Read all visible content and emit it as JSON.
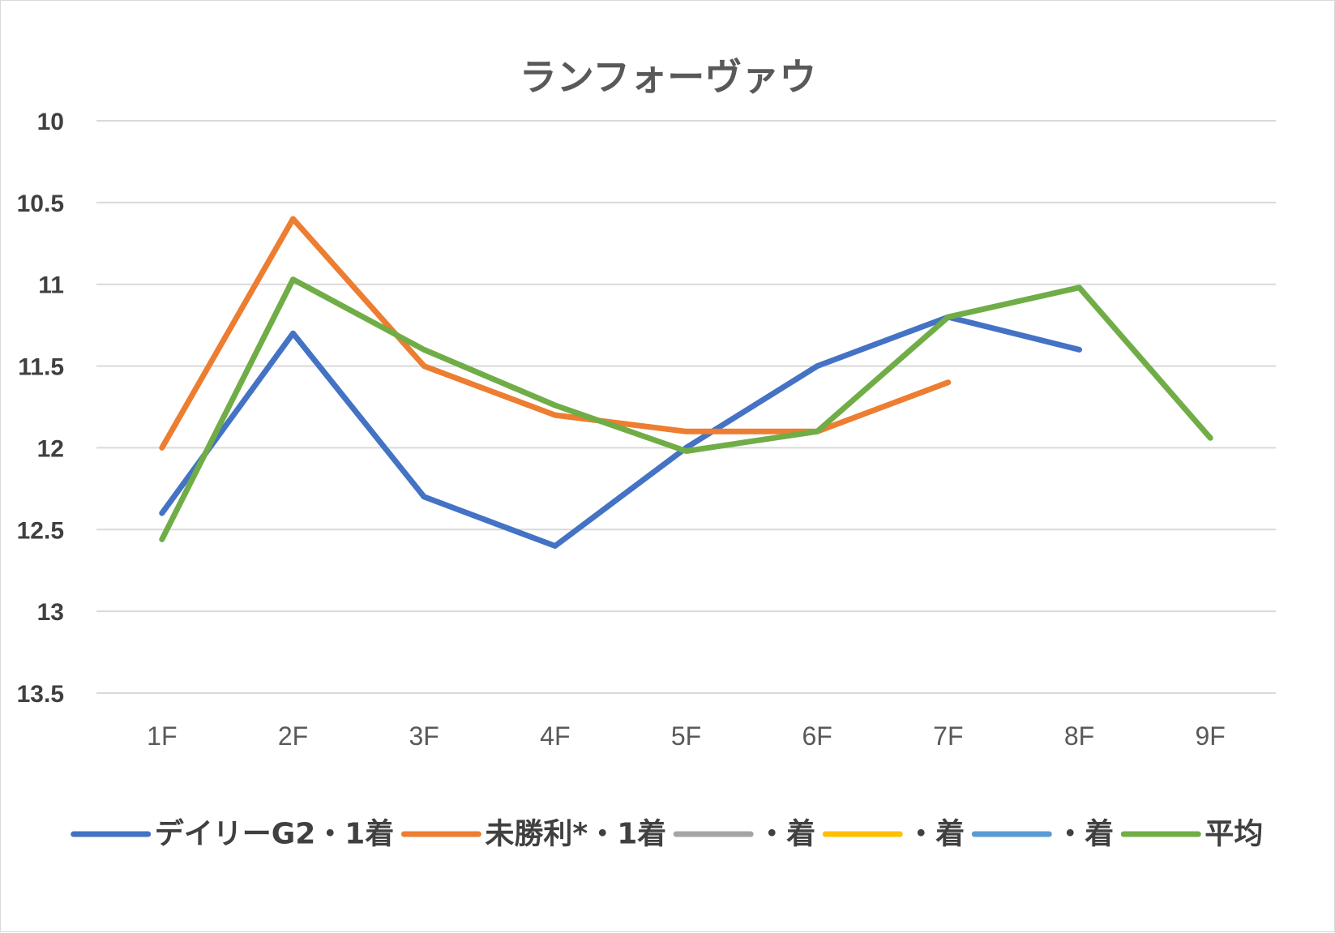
{
  "chart_data": {
    "type": "line",
    "title": "ランフォーヴァウ",
    "xlabel": "",
    "ylabel": "",
    "categories": [
      "1F",
      "2F",
      "3F",
      "4F",
      "5F",
      "6F",
      "7F",
      "8F",
      "9F"
    ],
    "ylim": [
      13.5,
      10
    ],
    "yaxis_reversed": true,
    "yticks": [
      "10",
      "10.5",
      "11",
      "11.5",
      "12",
      "12.5",
      "13",
      "13.5"
    ],
    "ytick_values": [
      10,
      10.5,
      11,
      11.5,
      12,
      12.5,
      13,
      13.5
    ],
    "grid": true,
    "legend_position": "bottom",
    "series": [
      {
        "name": "デイリーG2・1着",
        "color": "#4472c4",
        "values": [
          12.4,
          11.3,
          12.3,
          12.6,
          12.0,
          11.5,
          11.2,
          11.4,
          null
        ]
      },
      {
        "name": "未勝利*・1着",
        "color": "#ed7d31",
        "values": [
          12.0,
          10.6,
          11.5,
          11.8,
          11.9,
          11.9,
          11.6,
          null,
          null
        ]
      },
      {
        "name": "・着",
        "color": "#a5a5a5",
        "values": [
          null,
          null,
          null,
          null,
          null,
          null,
          null,
          null,
          null
        ]
      },
      {
        "name": "・着",
        "color": "#ffc000",
        "values": [
          null,
          null,
          null,
          null,
          null,
          null,
          null,
          null,
          null
        ]
      },
      {
        "name": "・着",
        "color": "#5b9bd5",
        "values": [
          null,
          null,
          null,
          null,
          null,
          null,
          null,
          null,
          null
        ]
      },
      {
        "name": "平均",
        "color": "#70ad47",
        "values": [
          12.56,
          10.97,
          11.4,
          11.74,
          12.02,
          11.9,
          11.2,
          11.02,
          11.94
        ]
      }
    ]
  }
}
